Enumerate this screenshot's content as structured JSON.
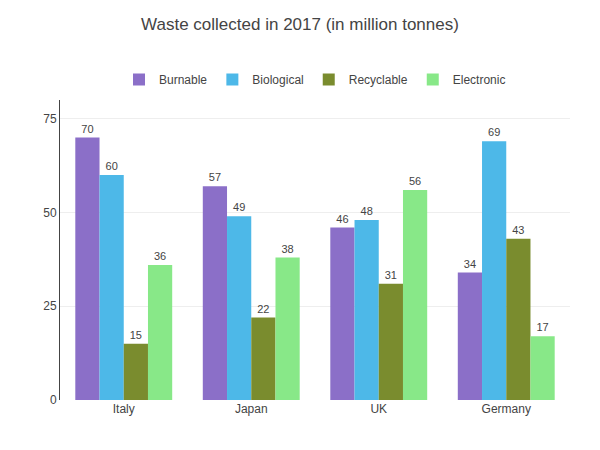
{
  "chart_data": {
    "type": "bar",
    "title": "Waste collected in 2017 (in million tonnes)",
    "categories": [
      "Italy",
      "Japan",
      "UK",
      "Germany"
    ],
    "series": [
      {
        "name": "Burnable",
        "color": "#8b6fc8",
        "values": [
          70,
          57,
          46,
          34
        ]
      },
      {
        "name": "Biological",
        "color": "#4db8e8",
        "values": [
          60,
          49,
          48,
          69
        ]
      },
      {
        "name": "Recyclable",
        "color": "#7a8c2e",
        "values": [
          15,
          22,
          31,
          43
        ]
      },
      {
        "name": "Electronic",
        "color": "#88e888",
        "values": [
          36,
          38,
          56,
          17
        ]
      }
    ],
    "ylim": [
      0,
      80
    ],
    "yticks": [
      0,
      25,
      50,
      75
    ],
    "grid": true,
    "legend": "top",
    "data_labels": true
  }
}
